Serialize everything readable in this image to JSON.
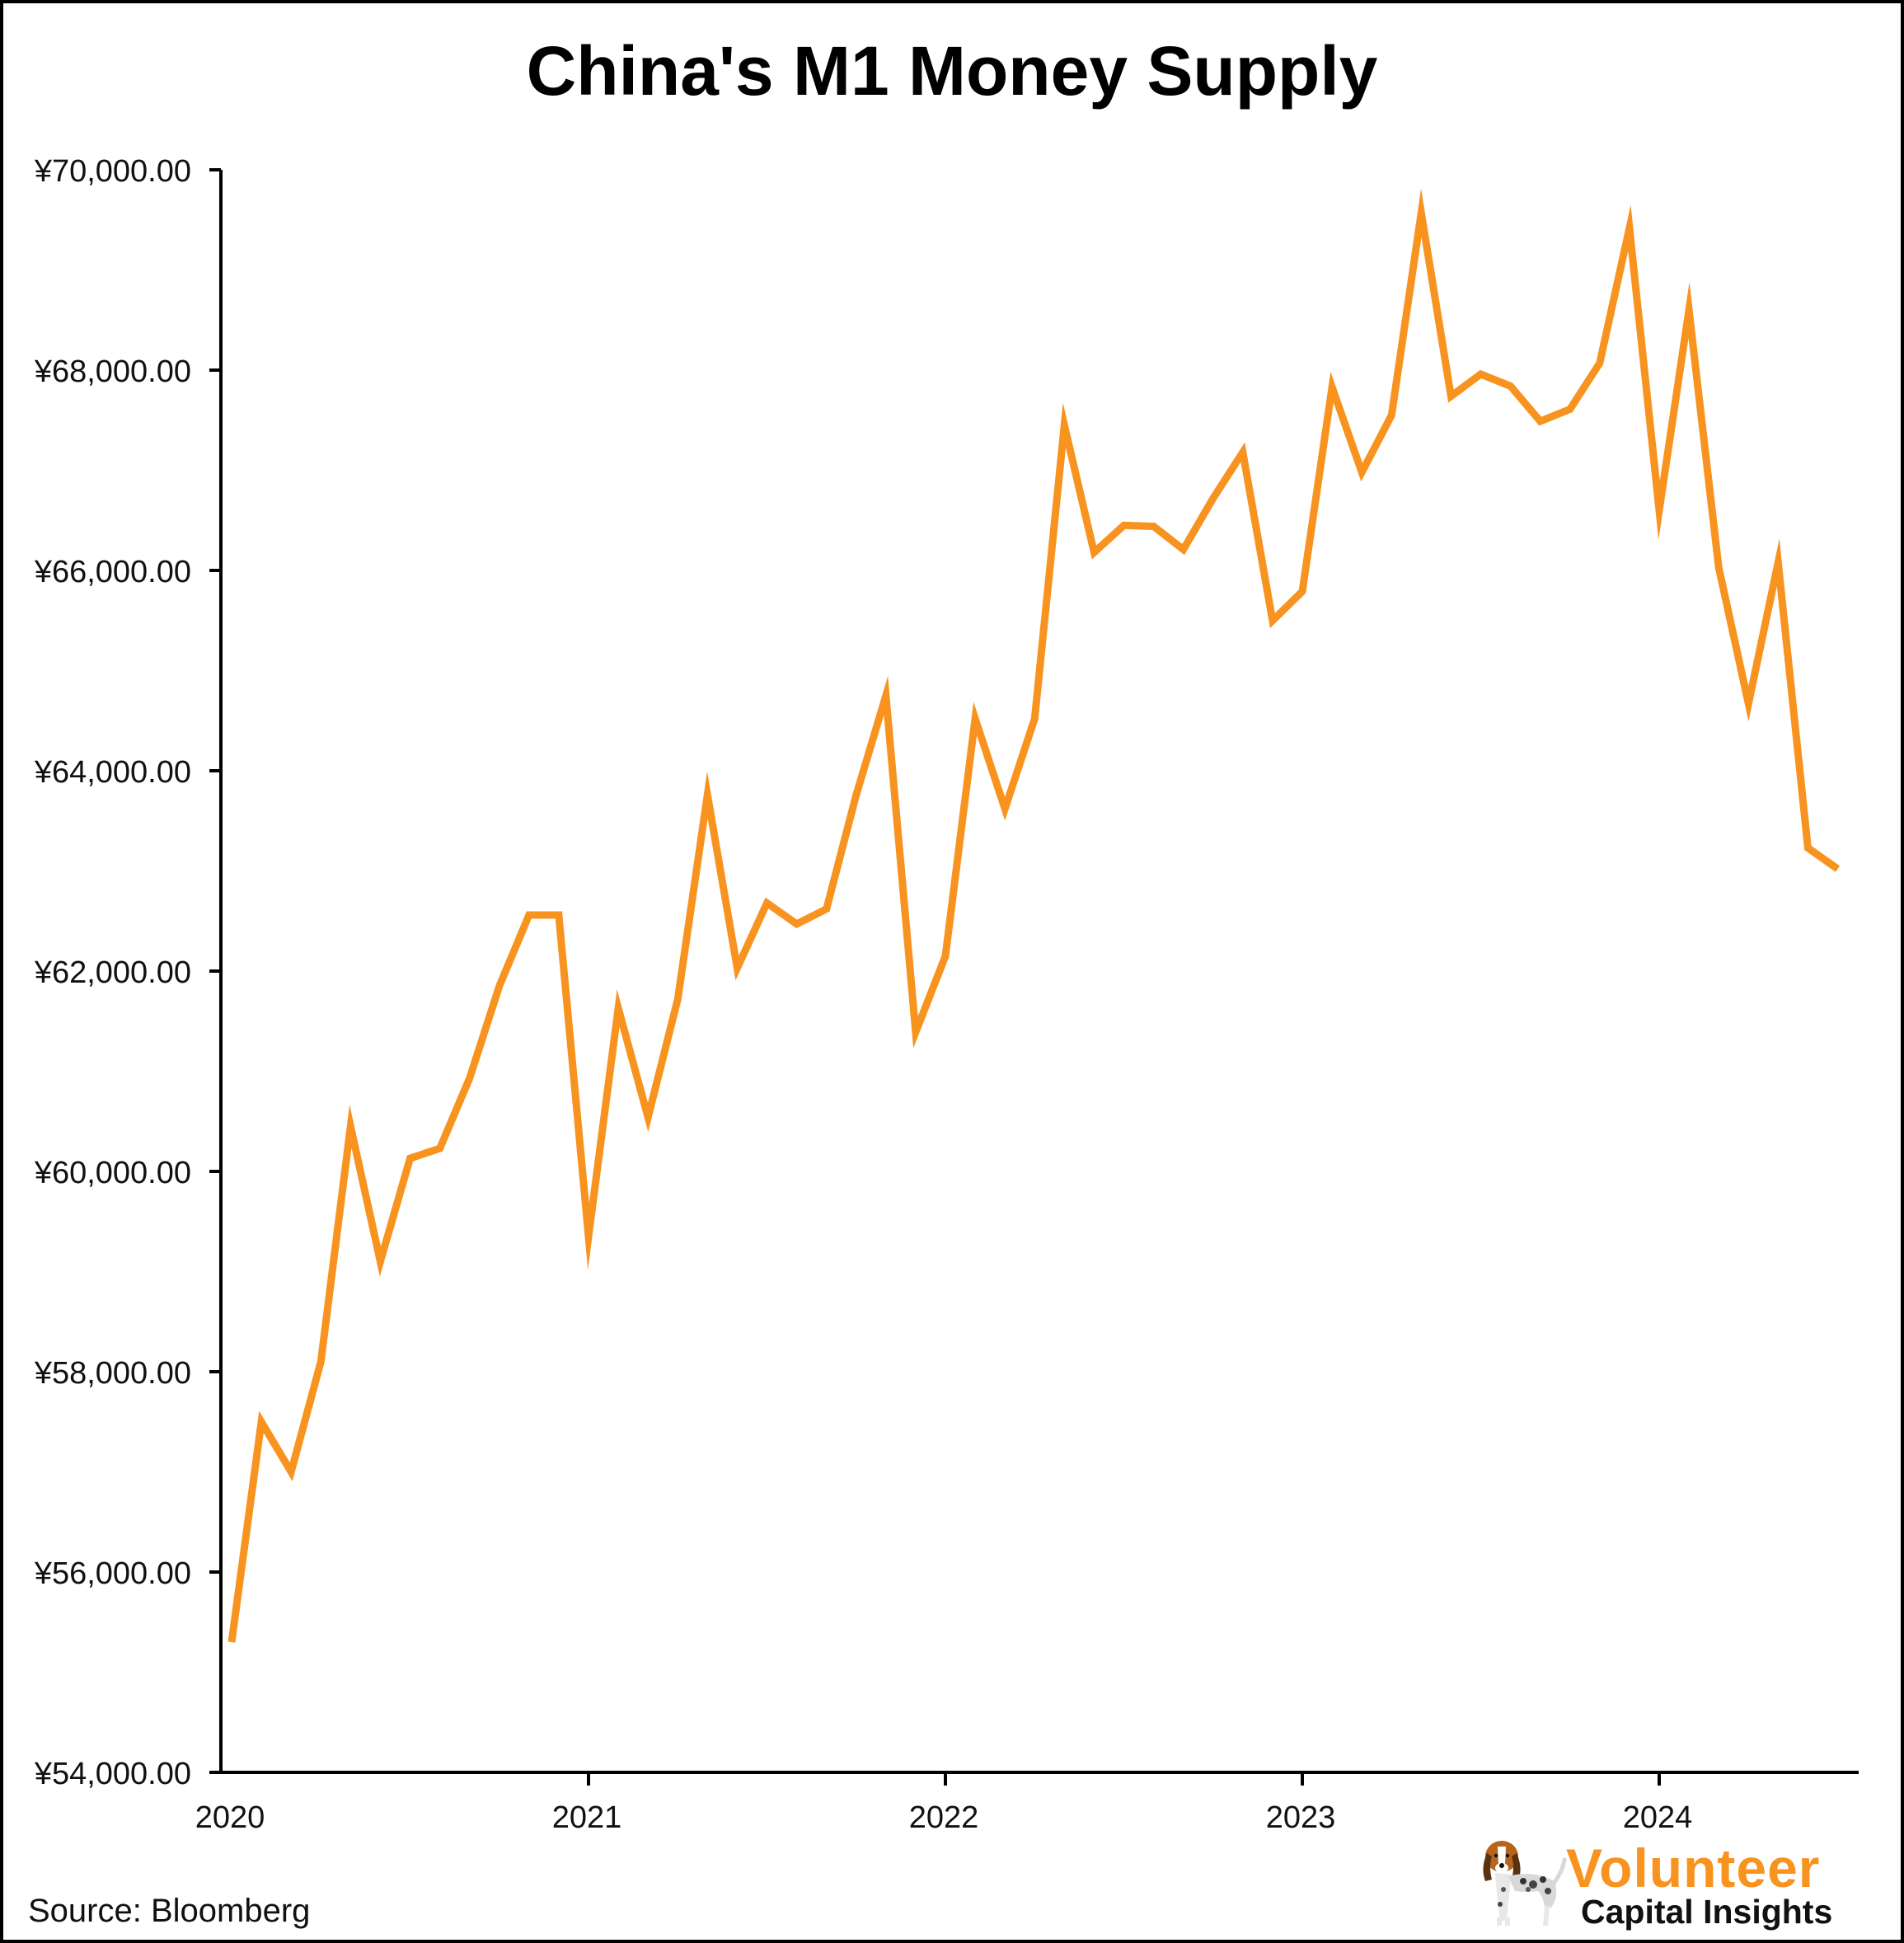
{
  "chart_data": {
    "type": "line",
    "title": "China's M1 Money Supply",
    "xlabel": "",
    "ylabel": "",
    "ylim": [
      54000,
      70000
    ],
    "yticks": [
      54000,
      56000,
      58000,
      60000,
      62000,
      64000,
      66000,
      68000,
      70000
    ],
    "ytick_labels": [
      "¥54,000.00",
      "¥56,000.00",
      "¥58,000.00",
      "¥60,000.00",
      "¥62,000.00",
      "¥64,000.00",
      "¥66,000.00",
      "¥68,000.00",
      "¥70,000.00"
    ],
    "xticks": [
      "2020",
      "2021",
      "2022",
      "2023",
      "2024"
    ],
    "grid": false,
    "legend": "none",
    "line_color": "#f7931e",
    "series": [
      {
        "x": [
          "2020-01",
          "2020-02",
          "2020-03",
          "2020-04",
          "2020-05",
          "2020-06",
          "2020-07",
          "2020-08",
          "2020-09",
          "2020-10",
          "2020-11",
          "2020-12",
          "2021-01",
          "2021-02",
          "2021-03",
          "2021-04",
          "2021-05",
          "2021-06",
          "2021-07",
          "2021-08",
          "2021-09",
          "2021-10",
          "2021-11",
          "2021-12",
          "2022-01",
          "2022-02",
          "2022-03",
          "2022-04",
          "2022-05",
          "2022-06",
          "2022-07",
          "2022-08",
          "2022-09",
          "2022-10",
          "2022-11",
          "2022-12",
          "2023-01",
          "2023-02",
          "2023-03",
          "2023-04",
          "2023-05",
          "2023-06",
          "2023-07",
          "2023-08",
          "2023-09",
          "2023-10",
          "2023-11",
          "2023-12",
          "2024-01",
          "2024-02",
          "2024-03",
          "2024-04",
          "2024-05",
          "2024-06",
          "2024-07"
        ],
        "values": [
          55300,
          57500,
          57000,
          58100,
          60450,
          59100,
          60130,
          60230,
          60930,
          61850,
          62560,
          62560,
          59350,
          61630,
          60540,
          61720,
          63760,
          62030,
          62680,
          62470,
          62620,
          63760,
          64750,
          61390,
          62150,
          64520,
          63620,
          64520,
          67450,
          66180,
          66450,
          66440,
          66210,
          66720,
          67180,
          65500,
          65790,
          67830,
          66980,
          67550,
          69570,
          67740,
          67960,
          67840,
          67490,
          67610,
          68070,
          69420,
          66600,
          68600,
          66030,
          64670,
          66080,
          63230,
          63020
        ]
      }
    ]
  },
  "source_text": "Source: Bloomberg",
  "logo": {
    "line1": "Volunteer",
    "line2": "Capital Insights"
  }
}
